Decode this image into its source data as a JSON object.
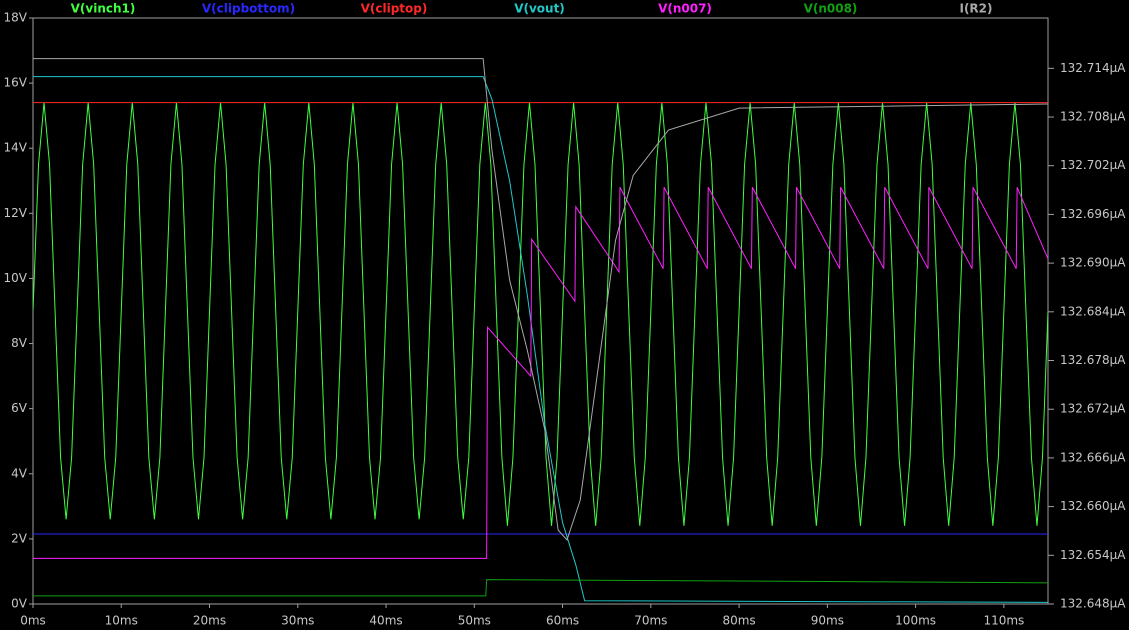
{
  "chart_data": {
    "type": "line",
    "xlim": [
      0,
      115
    ],
    "xticks": [
      {
        "value": 0,
        "label": "0ms"
      },
      {
        "value": 10,
        "label": "10ms"
      },
      {
        "value": 20,
        "label": "20ms"
      },
      {
        "value": 30,
        "label": "30ms"
      },
      {
        "value": 40,
        "label": "40ms"
      },
      {
        "value": 50,
        "label": "50ms"
      },
      {
        "value": 60,
        "label": "60ms"
      },
      {
        "value": 70,
        "label": "70ms"
      },
      {
        "value": 80,
        "label": "80ms"
      },
      {
        "value": 90,
        "label": "90ms"
      },
      {
        "value": 100,
        "label": "100ms"
      },
      {
        "value": 110,
        "label": "110ms"
      }
    ],
    "ylim": [
      0,
      18
    ],
    "yticks": [
      {
        "value": 0,
        "label": "0V"
      },
      {
        "value": 2,
        "label": "2V"
      },
      {
        "value": 4,
        "label": "4V"
      },
      {
        "value": 6,
        "label": "6V"
      },
      {
        "value": 8,
        "label": "8V"
      },
      {
        "value": 10,
        "label": "10V"
      },
      {
        "value": 12,
        "label": "12V"
      },
      {
        "value": 14,
        "label": "14V"
      },
      {
        "value": 16,
        "label": "16V"
      },
      {
        "value": 18,
        "label": "18V"
      }
    ],
    "y2lim": [
      132.648,
      132.7202
    ],
    "y2ticks": [
      {
        "value": 132.648,
        "label": "132.648µA"
      },
      {
        "value": 132.654,
        "label": "132.654µA"
      },
      {
        "value": 132.66,
        "label": "132.660µA"
      },
      {
        "value": 132.666,
        "label": "132.666µA"
      },
      {
        "value": 132.672,
        "label": "132.672µA"
      },
      {
        "value": 132.678,
        "label": "132.678µA"
      },
      {
        "value": 132.684,
        "label": "132.684µA"
      },
      {
        "value": 132.69,
        "label": "132.690µA"
      },
      {
        "value": 132.696,
        "label": "132.696µA"
      },
      {
        "value": 132.702,
        "label": "132.702µA"
      },
      {
        "value": 132.708,
        "label": "132.708µA"
      },
      {
        "value": 132.714,
        "label": "132.714µA"
      }
    ],
    "grid": false,
    "series": [
      {
        "name": "V(vinch1)",
        "color": "#40ff40",
        "x": [
          0,
          0.625,
          1.25,
          1.875,
          2.5,
          3.125,
          3.75,
          4.375,
          5,
          5.625,
          6.25,
          6.875,
          7.5,
          8.125,
          8.75,
          9.375,
          10,
          10.625,
          11.25,
          11.875,
          12.5,
          13.125,
          13.75,
          14.375,
          15,
          15.625,
          16.25,
          16.875,
          17.5,
          18.125,
          18.75,
          19.375,
          20,
          20.625,
          21.25,
          21.875,
          22.5,
          23.125,
          23.75,
          24.375,
          25,
          25.625,
          26.25,
          26.875,
          27.5,
          28.125,
          28.75,
          29.375,
          30,
          30.625,
          31.25,
          31.875,
          32.5,
          33.125,
          33.75,
          34.375,
          35,
          35.625,
          36.25,
          36.875,
          37.5,
          38.125,
          38.75,
          39.375,
          40,
          40.625,
          41.25,
          41.875,
          42.5,
          43.125,
          43.75,
          44.375,
          45,
          45.625,
          46.25,
          46.875,
          47.5,
          48.125,
          48.75,
          49.375,
          50,
          50.625,
          51.25,
          51.875,
          52.5,
          53.125,
          53.75,
          54.375,
          55,
          55.625,
          56.25,
          56.875,
          57.5,
          58.125,
          58.75,
          59.375,
          60,
          60.625,
          61.25,
          61.875,
          62.5,
          63.125,
          63.75,
          64.375,
          65,
          65.625,
          66.25,
          66.875,
          67.5,
          68.125,
          68.75,
          69.375,
          70,
          70.625,
          71.25,
          71.875,
          72.5,
          73.125,
          73.75,
          74.375,
          75,
          75.625,
          76.25,
          76.875,
          77.5,
          78.125,
          78.75,
          79.375,
          80,
          80.625,
          81.25,
          81.875,
          82.5,
          83.125,
          83.75,
          84.375,
          85,
          85.625,
          86.25,
          86.875,
          87.5,
          88.125,
          88.75,
          89.375,
          90,
          90.625,
          91.25,
          91.875,
          92.5,
          93.125,
          93.75,
          94.375,
          95,
          95.625,
          96.25,
          96.875,
          97.5,
          98.125,
          98.75,
          99.375,
          100,
          100.625,
          101.25,
          101.875,
          102.5,
          103.125,
          103.75,
          104.375,
          105,
          105.625,
          106.25,
          106.875,
          107.5,
          108.125,
          108.75,
          109.375,
          110,
          110.625,
          111.25,
          111.875,
          112.5,
          113.125,
          113.75,
          114.375,
          115
        ],
        "values": [
          9,
          13.5,
          15.4,
          13.5,
          9,
          4.5,
          2.6,
          4.5,
          9,
          13.5,
          15.4,
          13.5,
          9,
          4.5,
          2.6,
          4.5,
          9,
          13.5,
          15.4,
          13.5,
          9,
          4.5,
          2.6,
          4.5,
          9,
          13.5,
          15.4,
          13.5,
          9,
          4.5,
          2.6,
          4.5,
          9,
          13.5,
          15.4,
          13.5,
          9,
          4.5,
          2.6,
          4.5,
          9,
          13.5,
          15.4,
          13.5,
          9,
          4.5,
          2.6,
          4.5,
          9,
          13.5,
          15.4,
          13.5,
          9,
          4.5,
          2.6,
          4.5,
          9,
          13.5,
          15.4,
          13.5,
          9,
          4.5,
          2.6,
          4.5,
          9,
          13.5,
          15.4,
          13.5,
          9,
          4.5,
          2.6,
          4.5,
          9,
          13.5,
          15.4,
          13.5,
          9,
          4.5,
          2.6,
          4.5,
          9,
          13.5,
          15.4,
          13.5,
          9,
          4.5,
          2.4,
          4.5,
          9,
          13.5,
          15.4,
          13.5,
          9,
          4.5,
          2.4,
          4.5,
          9,
          13.5,
          15.4,
          13.5,
          9,
          4.5,
          2.4,
          4.5,
          9,
          13.5,
          15.4,
          13.5,
          9,
          4.5,
          2.4,
          4.5,
          9,
          13.5,
          15.4,
          13.5,
          9,
          4.5,
          2.4,
          4.5,
          9,
          13.5,
          15.4,
          13.5,
          9,
          4.5,
          2.4,
          4.5,
          9,
          13.5,
          15.4,
          13.5,
          9,
          4.5,
          2.4,
          4.5,
          9,
          13.5,
          15.4,
          13.5,
          9,
          4.5,
          2.4,
          4.5,
          9,
          13.5,
          15.4,
          13.5,
          9,
          4.5,
          2.4,
          4.5,
          9,
          13.5,
          15.4,
          13.5,
          9,
          4.5,
          2.4,
          4.5,
          9,
          13.5,
          15.4,
          13.5,
          9,
          4.5,
          2.4,
          4.5,
          9,
          13.5,
          15.4,
          13.5,
          9,
          4.5,
          2.4,
          4.5,
          9,
          13.5,
          15.4,
          13.5,
          9,
          4.5,
          2.4,
          4.5,
          9
        ]
      },
      {
        "name": "V(clipbottom)",
        "color": "#2828ff",
        "x": [
          0,
          115
        ],
        "values": [
          2.15,
          2.15
        ]
      },
      {
        "name": "V(cliptop)",
        "color": "#ff2828",
        "x": [
          0,
          115
        ],
        "values": [
          15.4,
          15.4
        ]
      },
      {
        "name": "V(vout)",
        "color": "#20c8c8",
        "x": [
          0,
          51,
          52,
          54,
          56,
          58,
          60,
          61.5,
          62.5,
          115
        ],
        "values": [
          16.2,
          16.2,
          15.5,
          13,
          9.5,
          5.5,
          2.5,
          1.2,
          0.1,
          0.05
        ]
      },
      {
        "name": "V(n007)",
        "color": "#ff20ff",
        "x": [
          0,
          51.4,
          51.5,
          56.4,
          56.5,
          61.4,
          61.5,
          66.4,
          66.5,
          71.4,
          71.5,
          76.4,
          76.5,
          81.4,
          81.5,
          86.4,
          86.5,
          91.4,
          91.5,
          96.4,
          96.5,
          101.4,
          101.5,
          106.4,
          106.5,
          111.4,
          111.5,
          115
        ],
        "values": [
          1.4,
          1.4,
          8.5,
          7.0,
          11.2,
          9.3,
          12.2,
          10.2,
          12.8,
          10.3,
          12.8,
          10.3,
          12.8,
          10.3,
          12.8,
          10.3,
          12.8,
          10.3,
          12.8,
          10.3,
          12.8,
          10.3,
          12.8,
          10.3,
          12.8,
          10.3,
          12.8,
          10.6
        ]
      },
      {
        "name": "V(n008)",
        "color": "#10a010",
        "x": [
          0,
          51.3,
          51.4,
          115
        ],
        "values": [
          0.25,
          0.25,
          0.75,
          0.65
        ]
      },
      {
        "name": "I(R2)",
        "color": "#a8a8a8",
        "axis": "y2",
        "x": [
          0,
          51,
          52,
          54,
          56,
          58,
          59.5,
          60.5,
          62,
          64,
          66,
          68,
          72,
          80,
          115
        ],
        "values": [
          132.7152,
          132.7152,
          132.7039,
          132.6879,
          132.6793,
          132.6694,
          132.6571,
          132.6559,
          132.6608,
          132.6768,
          132.6928,
          132.7008,
          132.7064,
          132.7091,
          132.7096
        ]
      }
    ]
  }
}
